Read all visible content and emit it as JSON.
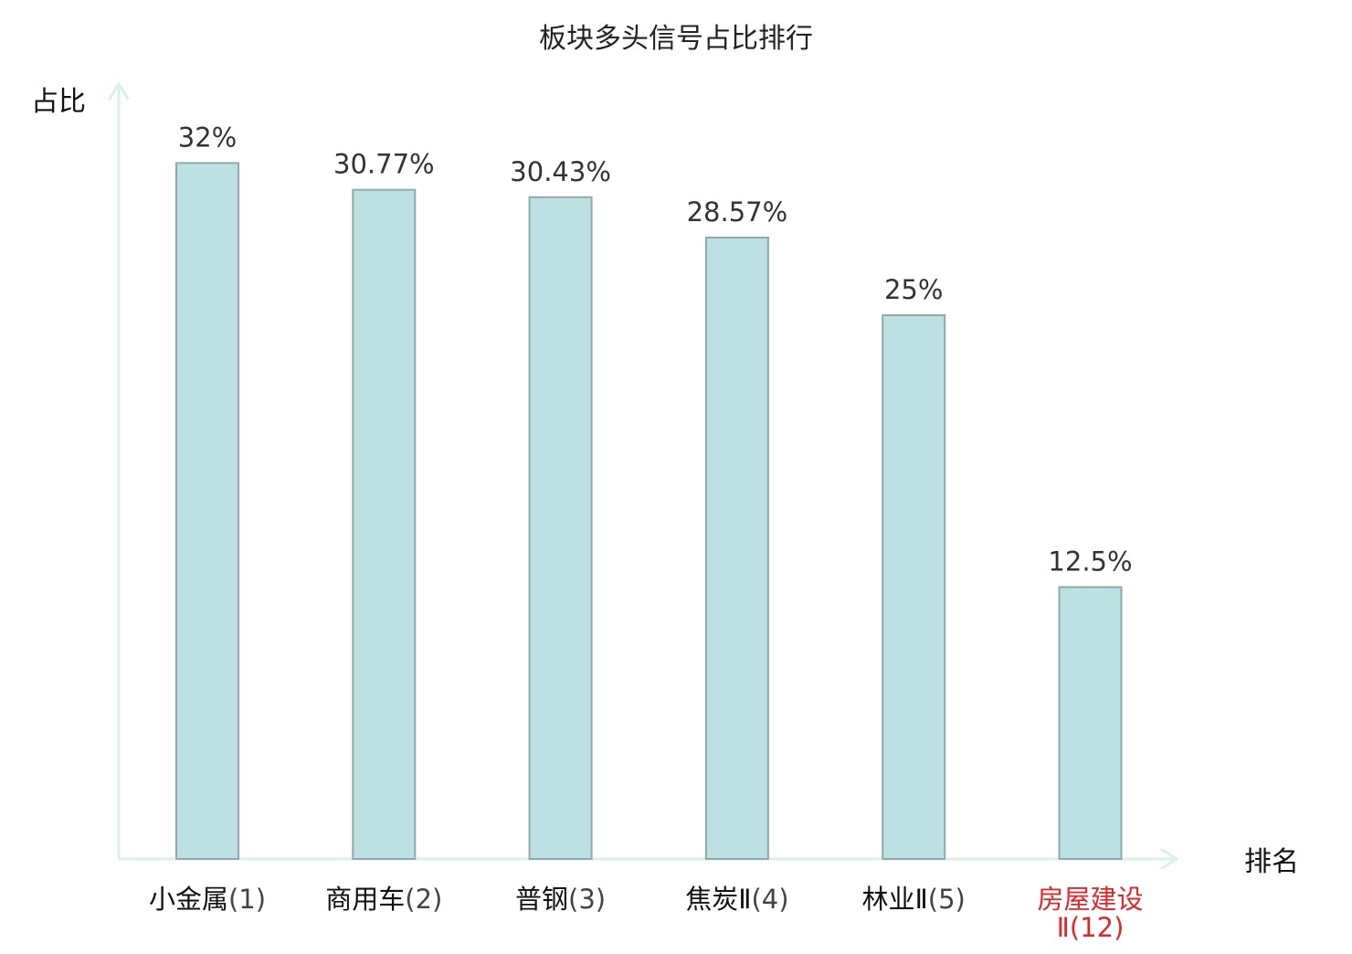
{
  "colors": {
    "bar_fill": "#bde0e3",
    "bar_stroke": "#8fa9ab",
    "axis": "#d9f0ec",
    "text": "#333333",
    "label_dark": "#111111",
    "highlight": "#e0282c"
  },
  "chart_data": {
    "type": "bar",
    "title": "板块多头信号占比排行",
    "xlabel": "排名",
    "ylabel": "占比",
    "ylim": [
      0,
      35
    ],
    "grid": false,
    "legend": "none",
    "categories": [
      {
        "name": "小金属",
        "rank": "(1)",
        "highlight": false
      },
      {
        "name": "商用车",
        "rank": "(2)",
        "highlight": false
      },
      {
        "name": "普钢",
        "rank": "(3)",
        "highlight": false
      },
      {
        "name": "焦炭Ⅱ",
        "rank": "(4)",
        "highlight": false
      },
      {
        "name": "林业Ⅱ",
        "rank": "(5)",
        "highlight": false
      },
      {
        "name": "房屋建设",
        "rank": "Ⅱ(12)",
        "highlight": true
      }
    ],
    "values": [
      32,
      30.77,
      30.43,
      28.57,
      25,
      12.5
    ],
    "value_labels": [
      "32%",
      "30.77%",
      "30.43%",
      "28.57%",
      "25%",
      "12.5%"
    ]
  }
}
